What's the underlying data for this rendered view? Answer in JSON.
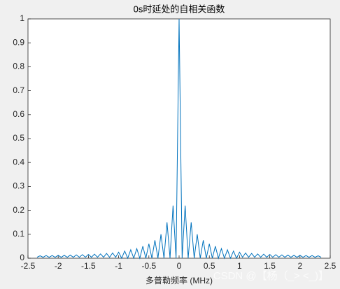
{
  "chart_data": {
    "type": "line",
    "title": "0s时延处的自相关函数",
    "x_label": "多普勒频率 (MHz)",
    "watermark": "CSDN @【杨（_> <_)】",
    "x": [
      -2.35,
      -2.3,
      -2.25,
      -2.2,
      -2.15,
      -2.1,
      -2.05,
      -2,
      -1.95,
      -1.9,
      -1.85,
      -1.8,
      -1.75,
      -1.7,
      -1.65,
      -1.6,
      -1.55,
      -1.5,
      -1.45,
      -1.4,
      -1.35,
      -1.3,
      -1.25,
      -1.2,
      -1.15,
      -1.1,
      -1.05,
      -1,
      -0.95,
      -0.9,
      -0.85,
      -0.8,
      -0.75,
      -0.7,
      -0.65,
      -0.6,
      -0.55,
      -0.5,
      -0.45,
      -0.4,
      -0.35,
      -0.3,
      -0.25,
      -0.2,
      -0.15,
      -0.1,
      -0.05,
      0,
      0.05,
      0.1,
      0.15,
      0.2,
      0.25,
      0.3,
      0.35,
      0.4,
      0.45,
      0.5,
      0.55,
      0.6,
      0.65,
      0.7,
      0.75,
      0.8,
      0.85,
      0.9,
      0.95,
      1,
      1.05,
      1.1,
      1.15,
      1.2,
      1.25,
      1.3,
      1.35,
      1.4,
      1.45,
      1.5,
      1.55,
      1.6,
      1.65,
      1.7,
      1.75,
      1.8,
      1.85,
      1.9,
      1.95,
      2,
      2.05,
      2.1,
      2.15,
      2.2,
      2.25,
      2.3,
      2.35
    ],
    "series": [
      {
        "color": "#0072bd",
        "values": [
          0.004,
          0.01,
          0.004,
          0.011,
          0.004,
          0.011,
          0.004,
          0.012,
          0.004,
          0.012,
          0.004,
          0.013,
          0.004,
          0.014,
          0.004,
          0.015,
          0.004,
          0.016,
          0.004,
          0.017,
          0.004,
          0.018,
          0.004,
          0.02,
          0.004,
          0.022,
          0.004,
          0.025,
          0,
          0.03,
          0,
          0.035,
          0,
          0.04,
          0,
          0.05,
          0,
          0.06,
          0,
          0.075,
          0,
          0.1,
          0,
          0.15,
          0,
          0.22,
          0,
          1,
          0,
          0.22,
          0,
          0.15,
          0,
          0.1,
          0,
          0.075,
          0,
          0.06,
          0,
          0.05,
          0,
          0.04,
          0,
          0.035,
          0,
          0.03,
          0,
          0.025,
          0.004,
          0.022,
          0.004,
          0.02,
          0.004,
          0.018,
          0.004,
          0.017,
          0.004,
          0.016,
          0.004,
          0.015,
          0.004,
          0.014,
          0.004,
          0.013,
          0.004,
          0.012,
          0.004,
          0.012,
          0.004,
          0.011,
          0.004,
          0.011,
          0.004,
          0.01,
          0.004
        ]
      }
    ],
    "xlim": [
      -2.5,
      2.5
    ],
    "xticks": [
      -2.5,
      -2,
      -1.5,
      -1,
      -0.5,
      0,
      0.5,
      1,
      1.5,
      2,
      2.5
    ],
    "ylim": [
      0,
      1
    ],
    "yticks": [
      0,
      0.1,
      0.2,
      0.3,
      0.4,
      0.5,
      0.6,
      0.7,
      0.8,
      0.9,
      1
    ],
    "grid": false
  }
}
